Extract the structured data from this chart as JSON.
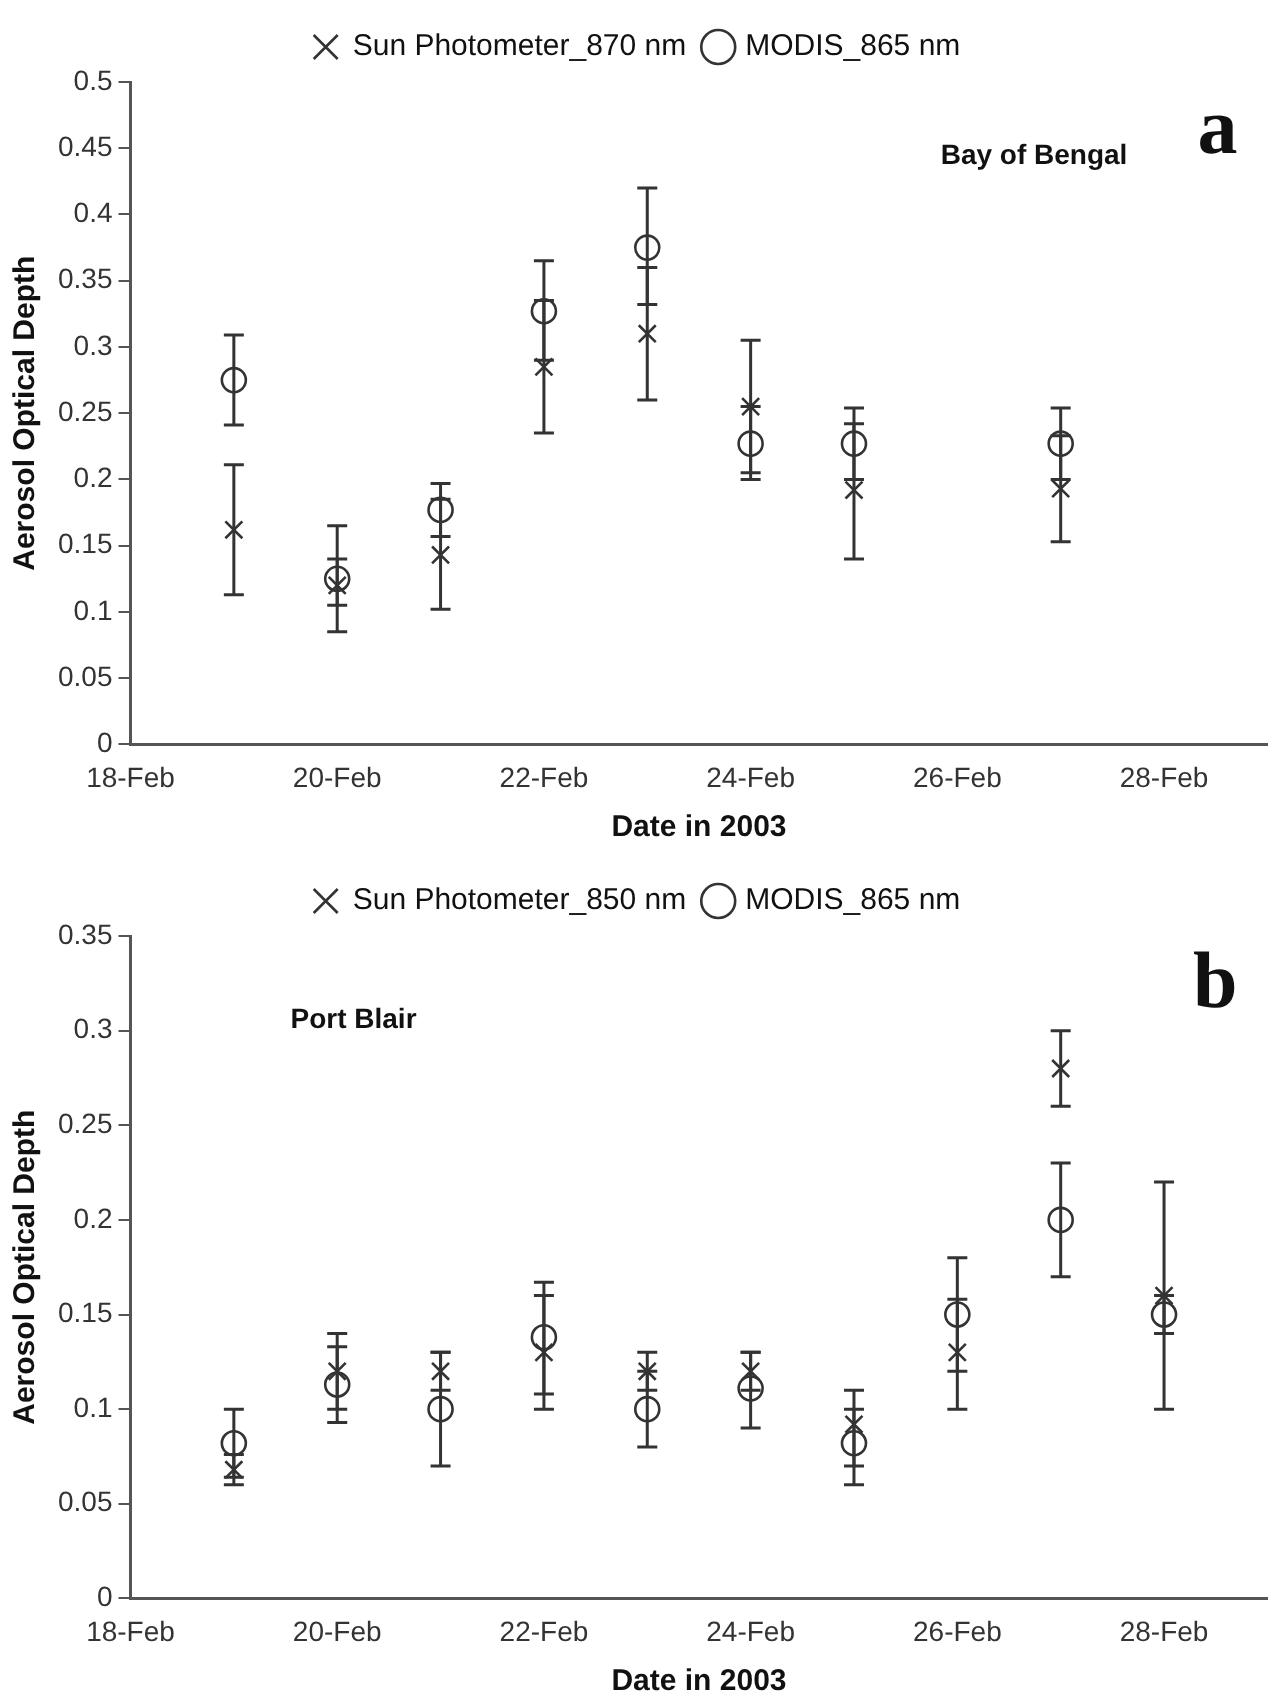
{
  "chart_data": [
    {
      "type": "scatter",
      "xlabel": "Date in 2003",
      "ylabel": "Aerosol Optical Depth",
      "annotations": [
        "a",
        "Bay of Bengal"
      ],
      "x": [
        "2003-02-19",
        "2003-02-20",
        "2003-02-21",
        "2003-02-22",
        "2003-02-23",
        "2003-02-24",
        "2003-02-25",
        "2003-02-27"
      ],
      "series": [
        {
          "name": "Sun Photometer_870 nm",
          "color": "#333333",
          "marker": "cross",
          "values": [
            0.162,
            0.12,
            0.143,
            0.285,
            0.31,
            0.255,
            0.192,
            0.193
          ],
          "errors": [
            [
              0.113,
              0.211
            ],
            [
              0.105,
              0.14
            ],
            [
              0.102,
              0.185
            ],
            [
              0.235,
              0.335
            ],
            [
              0.26,
              0.36
            ],
            [
              0.205,
              0.305
            ],
            [
              0.14,
              0.242
            ],
            [
              0.153,
              0.233
            ]
          ]
        },
        {
          "name": "MODIS_865 nm",
          "color": "#333333",
          "marker": "circle",
          "values": [
            0.275,
            0.125,
            0.177,
            0.327,
            0.375,
            0.227,
            0.227,
            0.227
          ],
          "errors": [
            [
              0.241,
              0.309
            ],
            [
              0.085,
              0.165
            ],
            [
              0.157,
              0.197
            ],
            [
              0.29,
              0.365
            ],
            [
              0.332,
              0.42
            ],
            [
              0.2,
              0.255
            ],
            [
              0.2,
              0.254
            ],
            [
              0.2,
              0.254
            ]
          ]
        }
      ],
      "xlim": [
        "2003-02-18",
        "2003-03-01"
      ],
      "xticks": [
        {
          "value": "2003-02-18",
          "label": "18-Feb"
        },
        {
          "value": "2003-02-20",
          "label": "20-Feb"
        },
        {
          "value": "2003-02-22",
          "label": "22-Feb"
        },
        {
          "value": "2003-02-24",
          "label": "24-Feb"
        },
        {
          "value": "2003-02-26",
          "label": "26-Feb"
        },
        {
          "value": "2003-02-28",
          "label": "28-Feb"
        }
      ],
      "ylim": [
        0,
        0.5
      ],
      "yticks": [
        0,
        0.05,
        0.1,
        0.15,
        0.2,
        0.25,
        0.3,
        0.35,
        0.4,
        0.45,
        0.5
      ],
      "grid": false,
      "legend": "top"
    },
    {
      "type": "scatter",
      "xlabel": "Date in 2003",
      "ylabel": "Aerosol Optical Depth",
      "annotations": [
        "b",
        "Port Blair"
      ],
      "x": [
        "2003-02-19",
        "2003-02-20",
        "2003-02-21",
        "2003-02-22",
        "2003-02-23",
        "2003-02-24",
        "2003-02-25",
        "2003-02-26",
        "2003-02-27",
        "2003-02-28"
      ],
      "series": [
        {
          "name": "Sun Photometer_850 nm",
          "color": "#333333",
          "marker": "cross",
          "values": [
            0.068,
            0.12,
            0.12,
            0.13,
            0.12,
            0.12,
            0.092,
            0.13,
            0.28,
            0.16
          ],
          "errors": [
            [
              0.06,
              0.076
            ],
            [
              0.1,
              0.14
            ],
            [
              0.11,
              0.13
            ],
            [
              0.1,
              0.16
            ],
            [
              0.11,
              0.13
            ],
            [
              0.11,
              0.13
            ],
            [
              0.07,
              0.11
            ],
            [
              0.12,
              0.158
            ],
            [
              0.26,
              0.3
            ],
            [
              0.1,
              0.22
            ]
          ]
        },
        {
          "name": "MODIS_865 nm",
          "color": "#333333",
          "marker": "circle",
          "values": [
            0.082,
            0.113,
            0.1,
            0.138,
            0.1,
            0.111,
            0.082,
            0.15,
            0.2,
            0.15
          ],
          "errors": [
            [
              0.064,
              0.1
            ],
            [
              0.093,
              0.133
            ],
            [
              0.07,
              0.13
            ],
            [
              0.108,
              0.167
            ],
            [
              0.08,
              0.12
            ],
            [
              0.09,
              0.13
            ],
            [
              0.06,
              0.1
            ],
            [
              0.1,
              0.18
            ],
            [
              0.17,
              0.23
            ],
            [
              0.14,
              0.16
            ]
          ]
        }
      ],
      "xlim": [
        "2003-02-18",
        "2003-03-01"
      ],
      "xticks": [
        {
          "value": "2003-02-18",
          "label": "18-Feb"
        },
        {
          "value": "2003-02-20",
          "label": "20-Feb"
        },
        {
          "value": "2003-02-22",
          "label": "22-Feb"
        },
        {
          "value": "2003-02-24",
          "label": "24-Feb"
        },
        {
          "value": "2003-02-26",
          "label": "26-Feb"
        },
        {
          "value": "2003-02-28",
          "label": "28-Feb"
        }
      ],
      "ylim": [
        0,
        0.35
      ],
      "yticks": [
        0,
        0.05,
        0.1,
        0.15,
        0.2,
        0.25,
        0.3,
        0.35
      ],
      "grid": false,
      "legend": "top"
    }
  ]
}
